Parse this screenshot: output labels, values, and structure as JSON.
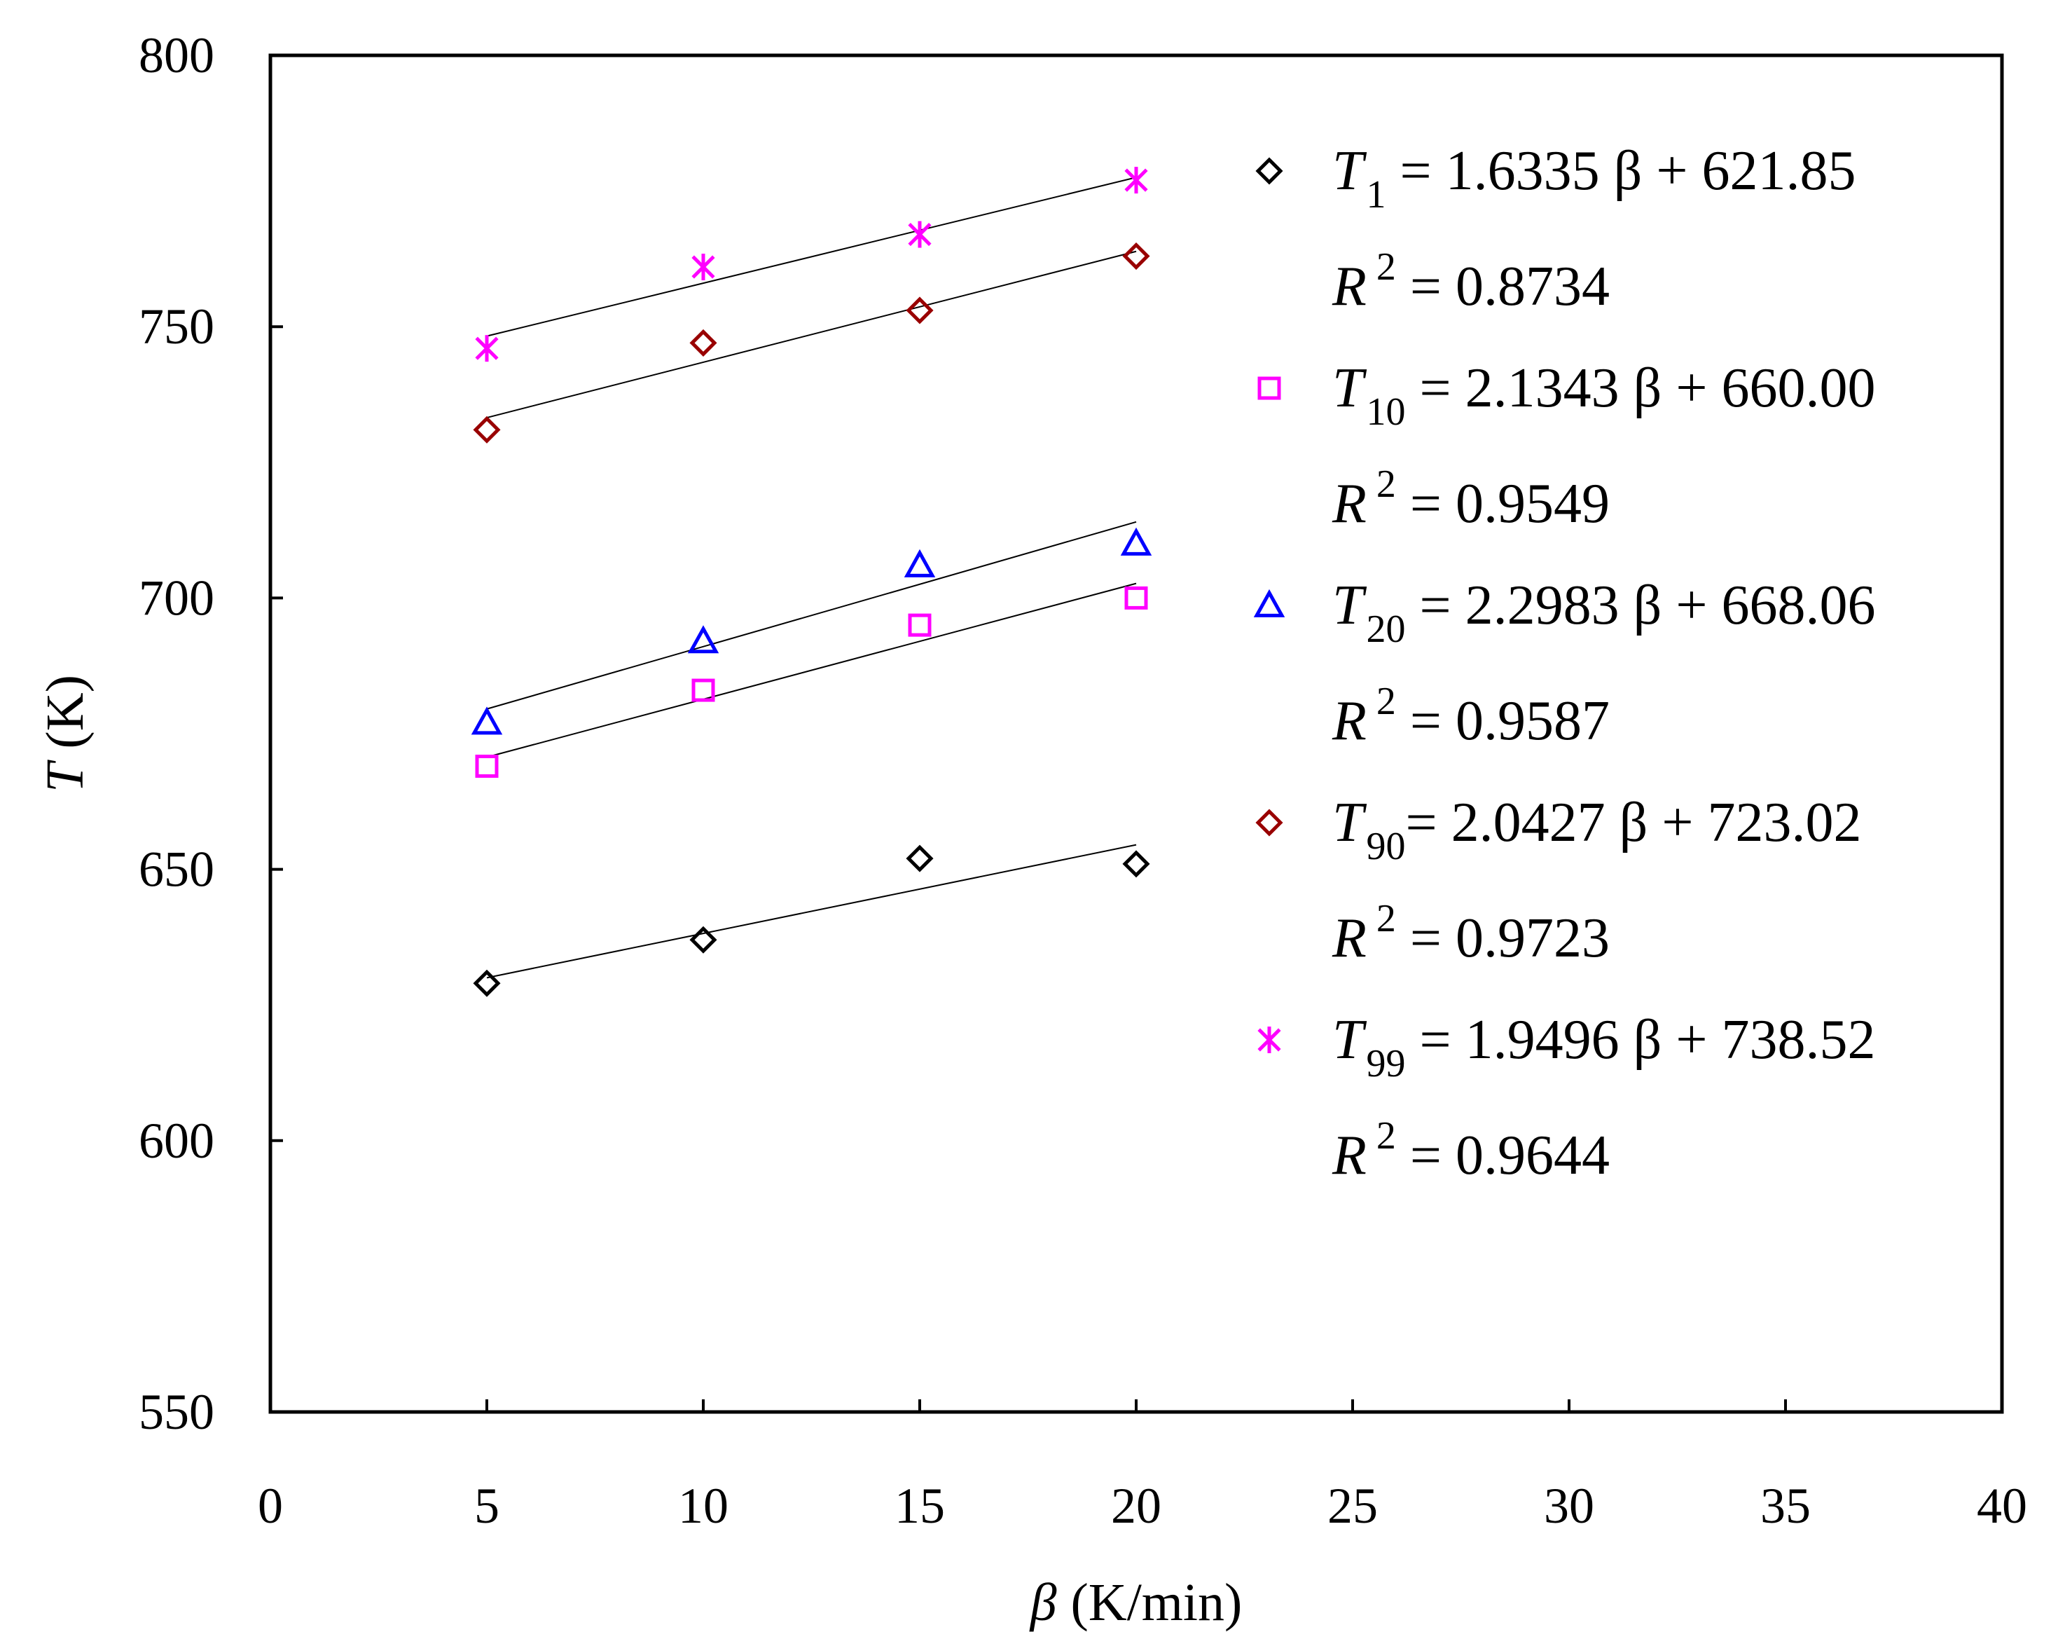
{
  "chart_data": {
    "type": "scatter",
    "title": "",
    "xlabel_symbol": "β",
    "xlabel_unit": "(K/min)",
    "ylabel_symbol": "T",
    "ylabel_unit": "(K)",
    "xlim": [
      0,
      40
    ],
    "ylim": [
      550,
      800
    ],
    "xticks": [
      0,
      5,
      10,
      15,
      20,
      25,
      30,
      35,
      40
    ],
    "yticks": [
      550,
      600,
      650,
      700,
      750,
      800
    ],
    "grid": false,
    "legend_position": "right",
    "series": [
      {
        "name": "T1",
        "subscript": "1",
        "marker": "diamond",
        "color": "#000000",
        "x": [
          5,
          10,
          15,
          20
        ],
        "y": [
          629,
          637,
          652,
          651
        ],
        "fit": {
          "slope": 1.6335,
          "intercept": 621.85
        },
        "equation_rest": " = 1.6335 β + 621.85",
        "r2_text": " = 0.8734"
      },
      {
        "name": "T10",
        "subscript": "10",
        "marker": "square",
        "color": "#ff00ff",
        "x": [
          5,
          10,
          15,
          20
        ],
        "y": [
          669,
          683,
          695,
          700
        ],
        "fit": {
          "slope": 2.1343,
          "intercept": 660.0
        },
        "equation_rest": " = 2.1343 β + 660.00",
        "r2_text": " = 0.9549"
      },
      {
        "name": "T20",
        "subscript": "20",
        "marker": "triangle",
        "color": "#0000ff",
        "x": [
          5,
          10,
          15,
          20
        ],
        "y": [
          677,
          692,
          706,
          710
        ],
        "fit": {
          "slope": 2.2983,
          "intercept": 668.06
        },
        "equation_rest": " = 2.2983 β + 668.06",
        "r2_text": " = 0.9587"
      },
      {
        "name": "T90",
        "subscript": "90",
        "marker": "diamond",
        "color": "#990000",
        "x": [
          5,
          10,
          15,
          20
        ],
        "y": [
          731,
          747,
          753,
          763
        ],
        "fit": {
          "slope": 2.0427,
          "intercept": 723.02
        },
        "equation_rest": "= 2.0427 β + 723.02",
        "r2_text": " = 0.9723"
      },
      {
        "name": "T99",
        "subscript": "99",
        "marker": "star",
        "color": "#ff00ff",
        "x": [
          5,
          10,
          15,
          20
        ],
        "y": [
          746,
          761,
          767,
          777
        ],
        "fit": {
          "slope": 1.9496,
          "intercept": 738.52
        },
        "equation_rest": " = 1.9496 β + 738.52",
        "r2_text": " = 0.9644"
      }
    ],
    "legend_symbols": {
      "T": "T",
      "R": "R",
      "sup": "2"
    }
  }
}
